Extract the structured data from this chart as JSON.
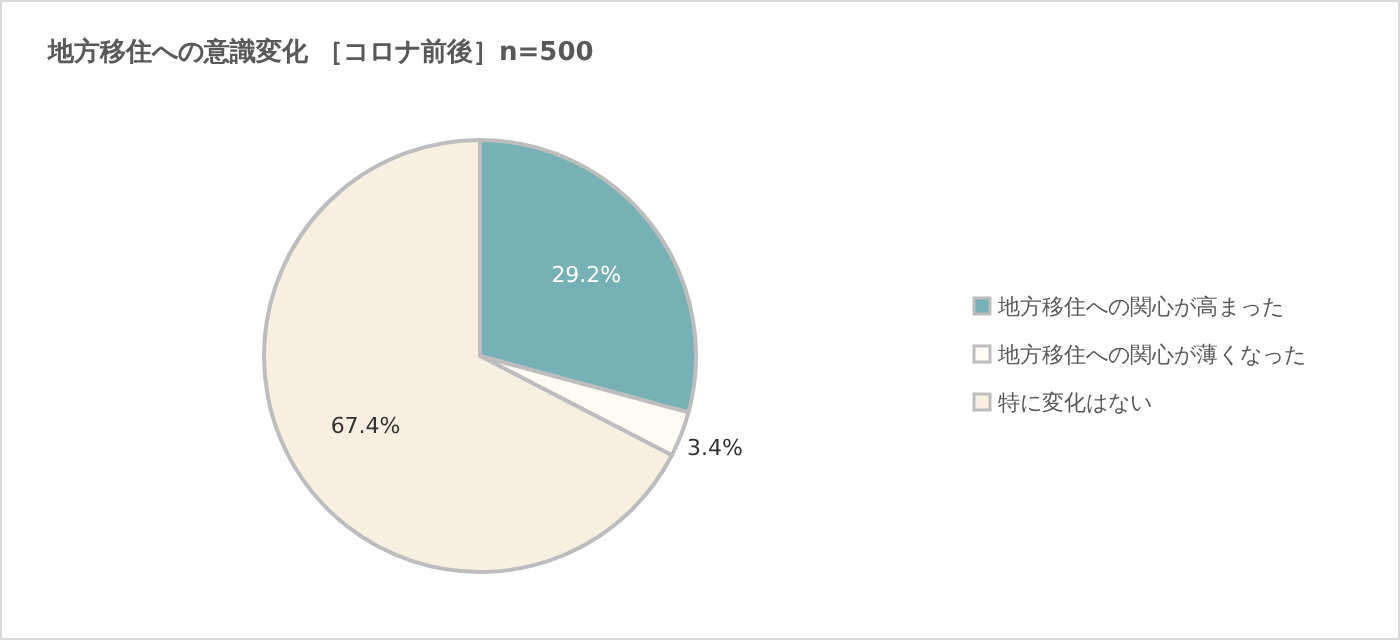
{
  "chart_data": {
    "type": "pie",
    "title": "地方移住への意識変化 ［コロナ前後］n=500",
    "categories": [
      "地方移住への関心が高まった",
      "地方移住への関心が薄くなった",
      "特に変化はない"
    ],
    "values": [
      29.2,
      3.4,
      67.4
    ],
    "colors": [
      "#75b1b5",
      "#fdfbf3",
      "#f7f0e0"
    ],
    "value_labels": [
      "29.2%",
      "3.4%",
      "67.4%"
    ],
    "legend": "right"
  }
}
